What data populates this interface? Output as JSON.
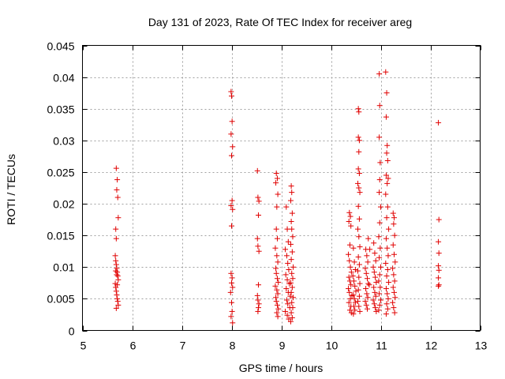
{
  "chart_data": {
    "type": "scatter",
    "title": "Day 131 of 2023, Rate Of TEC Index for receiver areg",
    "xlabel": "GPS time / hours",
    "ylabel": "ROTI / TECUs",
    "xlim": [
      5,
      13
    ],
    "ylim": [
      0,
      0.045
    ],
    "x_ticks": [
      5,
      6,
      7,
      8,
      9,
      10,
      11,
      12,
      13
    ],
    "x_tick_labels": [
      "5",
      "6",
      "7",
      "8",
      "9",
      "10",
      "11",
      "12",
      "13"
    ],
    "y_ticks": [
      0,
      0.005,
      0.01,
      0.015,
      0.02,
      0.025,
      0.03,
      0.035,
      0.04,
      0.045
    ],
    "y_tick_labels": [
      "0",
      "0.005",
      "0.01",
      "0.015",
      "0.02",
      "0.025",
      "0.03",
      "0.035",
      "0.04",
      "0.045"
    ],
    "grid": true,
    "marker": "+",
    "marker_color": "#e00000",
    "series": [
      {
        "name": "ROTI",
        "points": [
          [
            5.68,
            0.0256
          ],
          [
            5.7,
            0.0238
          ],
          [
            5.69,
            0.0222
          ],
          [
            5.71,
            0.021
          ],
          [
            5.72,
            0.0178
          ],
          [
            5.67,
            0.016
          ],
          [
            5.68,
            0.0145
          ],
          [
            5.66,
            0.0118
          ],
          [
            5.67,
            0.011
          ],
          [
            5.68,
            0.0104
          ],
          [
            5.69,
            0.0098
          ],
          [
            5.7,
            0.0092
          ],
          [
            5.71,
            0.0086
          ],
          [
            5.72,
            0.008
          ],
          [
            5.66,
            0.0074
          ],
          [
            5.67,
            0.0068
          ],
          [
            5.68,
            0.0062
          ],
          [
            5.69,
            0.0056
          ],
          [
            5.7,
            0.005
          ],
          [
            5.71,
            0.0046
          ],
          [
            5.72,
            0.004
          ],
          [
            5.68,
            0.0035
          ],
          [
            5.69,
            0.0088
          ],
          [
            5.7,
            0.0072
          ],
          [
            5.67,
            0.0094
          ],
          [
            7.99,
            0.0377
          ],
          [
            8.0,
            0.037
          ],
          [
            8.01,
            0.033
          ],
          [
            7.99,
            0.031
          ],
          [
            8.02,
            0.029
          ],
          [
            8.0,
            0.0276
          ],
          [
            8.01,
            0.0205
          ],
          [
            7.99,
            0.0197
          ],
          [
            8.02,
            0.0191
          ],
          [
            8.0,
            0.0165
          ],
          [
            7.99,
            0.009
          ],
          [
            8.01,
            0.0083
          ],
          [
            8.0,
            0.0075
          ],
          [
            8.02,
            0.0068
          ],
          [
            7.98,
            0.006
          ],
          [
            8.0,
            0.0044
          ],
          [
            8.01,
            0.003
          ],
          [
            7.99,
            0.0022
          ],
          [
            8.02,
            0.0012
          ],
          [
            8.52,
            0.0252
          ],
          [
            8.53,
            0.021
          ],
          [
            8.55,
            0.0204
          ],
          [
            8.54,
            0.0182
          ],
          [
            8.52,
            0.0145
          ],
          [
            8.53,
            0.0133
          ],
          [
            8.55,
            0.0125
          ],
          [
            8.54,
            0.0072
          ],
          [
            8.52,
            0.0055
          ],
          [
            8.53,
            0.0048
          ],
          [
            8.55,
            0.0042
          ],
          [
            8.54,
            0.0036
          ],
          [
            8.53,
            0.003
          ],
          [
            8.9,
            0.0248
          ],
          [
            8.92,
            0.024
          ],
          [
            8.89,
            0.0233
          ],
          [
            8.93,
            0.0215
          ],
          [
            8.91,
            0.0195
          ],
          [
            8.9,
            0.016
          ],
          [
            8.92,
            0.0145
          ],
          [
            8.88,
            0.013
          ],
          [
            8.91,
            0.0118
          ],
          [
            8.93,
            0.0108
          ],
          [
            8.89,
            0.0098
          ],
          [
            8.9,
            0.009
          ],
          [
            8.92,
            0.0082
          ],
          [
            8.94,
            0.0076
          ],
          [
            8.88,
            0.007
          ],
          [
            8.91,
            0.0064
          ],
          [
            8.93,
            0.0058
          ],
          [
            8.89,
            0.0052
          ],
          [
            8.9,
            0.0046
          ],
          [
            8.92,
            0.004
          ],
          [
            8.94,
            0.0034
          ],
          [
            8.91,
            0.0028
          ],
          [
            8.93,
            0.0022
          ],
          [
            9.1,
            0.0195
          ],
          [
            9.12,
            0.016
          ],
          [
            9.14,
            0.014
          ],
          [
            9.08,
            0.0128
          ],
          [
            9.11,
            0.0118
          ],
          [
            9.13,
            0.0106
          ],
          [
            9.15,
            0.0096
          ],
          [
            9.09,
            0.0088
          ],
          [
            9.12,
            0.008
          ],
          [
            9.16,
            0.0074
          ],
          [
            9.1,
            0.0066
          ],
          [
            9.14,
            0.006
          ],
          [
            9.18,
            0.0054
          ],
          [
            9.11,
            0.0048
          ],
          [
            9.13,
            0.0042
          ],
          [
            9.17,
            0.0036
          ],
          [
            9.08,
            0.003
          ],
          [
            9.12,
            0.0024
          ],
          [
            9.15,
            0.0018
          ],
          [
            9.19,
            0.0014
          ],
          [
            9.2,
            0.0228
          ],
          [
            9.21,
            0.0218
          ],
          [
            9.19,
            0.0205
          ],
          [
            9.22,
            0.0185
          ],
          [
            9.2,
            0.0172
          ],
          [
            9.21,
            0.016
          ],
          [
            9.23,
            0.0148
          ],
          [
            9.19,
            0.0136
          ],
          [
            9.22,
            0.0124
          ],
          [
            9.2,
            0.0112
          ],
          [
            9.24,
            0.01
          ],
          [
            9.21,
            0.009
          ],
          [
            9.23,
            0.0082
          ],
          [
            9.19,
            0.0075
          ],
          [
            9.22,
            0.0068
          ],
          [
            9.2,
            0.006
          ],
          [
            9.24,
            0.0052
          ],
          [
            9.21,
            0.0044
          ],
          [
            9.23,
            0.0036
          ],
          [
            9.2,
            0.0028
          ],
          [
            9.22,
            0.002
          ],
          [
            10.37,
            0.0186
          ],
          [
            10.39,
            0.018
          ],
          [
            10.36,
            0.0172
          ],
          [
            10.4,
            0.0165
          ],
          [
            10.38,
            0.0135
          ],
          [
            10.35,
            0.012
          ],
          [
            10.37,
            0.011
          ],
          [
            10.39,
            0.01
          ],
          [
            10.41,
            0.0092
          ],
          [
            10.36,
            0.0084
          ],
          [
            10.38,
            0.0078
          ],
          [
            10.4,
            0.0072
          ],
          [
            10.35,
            0.0066
          ],
          [
            10.37,
            0.006
          ],
          [
            10.42,
            0.0055
          ],
          [
            10.39,
            0.005
          ],
          [
            10.36,
            0.0044
          ],
          [
            10.4,
            0.0038
          ],
          [
            10.38,
            0.0032
          ],
          [
            10.41,
            0.0028
          ],
          [
            10.45,
            0.013
          ],
          [
            10.47,
            0.0108
          ],
          [
            10.49,
            0.0096
          ],
          [
            10.44,
            0.0086
          ],
          [
            10.46,
            0.0078
          ],
          [
            10.48,
            0.007
          ],
          [
            10.5,
            0.0062
          ],
          [
            10.45,
            0.0056
          ],
          [
            10.47,
            0.005
          ],
          [
            10.49,
            0.0044
          ],
          [
            10.46,
            0.0038
          ],
          [
            10.48,
            0.0032
          ],
          [
            10.45,
            0.0026
          ],
          [
            10.55,
            0.035
          ],
          [
            10.56,
            0.0345
          ],
          [
            10.55,
            0.0305
          ],
          [
            10.57,
            0.03
          ],
          [
            10.56,
            0.0282
          ],
          [
            10.55,
            0.0255
          ],
          [
            10.57,
            0.0248
          ],
          [
            10.54,
            0.0232
          ],
          [
            10.56,
            0.0225
          ],
          [
            10.58,
            0.0218
          ],
          [
            10.55,
            0.0196
          ],
          [
            10.57,
            0.0176
          ],
          [
            10.54,
            0.016
          ],
          [
            10.56,
            0.0148
          ],
          [
            10.58,
            0.0132
          ],
          [
            10.55,
            0.0116
          ],
          [
            10.57,
            0.0104
          ],
          [
            10.54,
            0.0094
          ],
          [
            10.56,
            0.0084
          ],
          [
            10.58,
            0.0074
          ],
          [
            10.55,
            0.0064
          ],
          [
            10.57,
            0.0054
          ],
          [
            10.54,
            0.0046
          ],
          [
            10.56,
            0.0038
          ],
          [
            10.58,
            0.003
          ],
          [
            10.7,
            0.0128
          ],
          [
            10.72,
            0.0118
          ],
          [
            10.74,
            0.0108
          ],
          [
            10.69,
            0.0098
          ],
          [
            10.71,
            0.009
          ],
          [
            10.73,
            0.0082
          ],
          [
            10.75,
            0.0074
          ],
          [
            10.7,
            0.0066
          ],
          [
            10.72,
            0.0058
          ],
          [
            10.74,
            0.0052
          ],
          [
            10.69,
            0.0046
          ],
          [
            10.71,
            0.004
          ],
          [
            10.73,
            0.0034
          ],
          [
            10.75,
            0.0145
          ],
          [
            10.78,
            0.0128
          ],
          [
            10.77,
            0.0072
          ],
          [
            10.86,
            0.0138
          ],
          [
            10.88,
            0.0122
          ],
          [
            10.9,
            0.011
          ],
          [
            10.85,
            0.01
          ],
          [
            10.87,
            0.0092
          ],
          [
            10.89,
            0.0084
          ],
          [
            10.91,
            0.0076
          ],
          [
            10.86,
            0.0068
          ],
          [
            10.88,
            0.006
          ],
          [
            10.9,
            0.0054
          ],
          [
            10.85,
            0.0048
          ],
          [
            10.87,
            0.0042
          ],
          [
            10.89,
            0.0036
          ],
          [
            10.91,
            0.003
          ],
          [
            10.97,
            0.0405
          ],
          [
            10.98,
            0.0355
          ],
          [
            10.97,
            0.0305
          ],
          [
            10.99,
            0.0265
          ],
          [
            10.98,
            0.0238
          ],
          [
            10.97,
            0.0218
          ],
          [
            11.0,
            0.0195
          ],
          [
            10.98,
            0.017
          ],
          [
            10.96,
            0.0148
          ],
          [
            10.99,
            0.013
          ],
          [
            10.97,
            0.0115
          ],
          [
            11.0,
            0.01
          ],
          [
            10.98,
            0.0088
          ],
          [
            10.96,
            0.0078
          ],
          [
            10.99,
            0.0068
          ],
          [
            10.97,
            0.0058
          ],
          [
            11.0,
            0.0048
          ],
          [
            10.98,
            0.004
          ],
          [
            10.96,
            0.0032
          ],
          [
            11.1,
            0.0408
          ],
          [
            11.12,
            0.0375
          ],
          [
            11.11,
            0.0337
          ],
          [
            11.13,
            0.0292
          ],
          [
            11.12,
            0.028
          ],
          [
            11.14,
            0.0268
          ],
          [
            11.11,
            0.0245
          ],
          [
            11.15,
            0.024
          ],
          [
            11.13,
            0.0232
          ],
          [
            11.1,
            0.0215
          ],
          [
            11.14,
            0.0195
          ],
          [
            11.12,
            0.0178
          ],
          [
            11.16,
            0.016
          ],
          [
            11.11,
            0.0145
          ],
          [
            11.13,
            0.013
          ],
          [
            11.15,
            0.0118
          ],
          [
            11.1,
            0.0106
          ],
          [
            11.14,
            0.0096
          ],
          [
            11.12,
            0.0086
          ],
          [
            11.16,
            0.0076
          ],
          [
            11.11,
            0.0066
          ],
          [
            11.13,
            0.0058
          ],
          [
            11.15,
            0.005
          ],
          [
            11.12,
            0.0042
          ],
          [
            11.14,
            0.0034
          ],
          [
            11.11,
            0.0026
          ],
          [
            11.25,
            0.0185
          ],
          [
            11.27,
            0.0178
          ],
          [
            11.26,
            0.0168
          ],
          [
            11.28,
            0.015
          ],
          [
            11.25,
            0.0135
          ],
          [
            11.27,
            0.012
          ],
          [
            11.29,
            0.0108
          ],
          [
            11.24,
            0.0098
          ],
          [
            11.26,
            0.0088
          ],
          [
            11.28,
            0.0078
          ],
          [
            11.25,
            0.0068
          ],
          [
            11.27,
            0.006
          ],
          [
            11.29,
            0.0052
          ],
          [
            11.24,
            0.0044
          ],
          [
            11.26,
            0.0036
          ],
          [
            11.28,
            0.0028
          ],
          [
            12.16,
            0.0328
          ],
          [
            12.17,
            0.0175
          ],
          [
            12.16,
            0.014
          ],
          [
            12.17,
            0.0122
          ],
          [
            12.16,
            0.0102
          ],
          [
            12.17,
            0.0095
          ],
          [
            12.16,
            0.0083
          ],
          [
            12.17,
            0.0072
          ],
          [
            12.16,
            0.007
          ]
        ]
      }
    ]
  }
}
